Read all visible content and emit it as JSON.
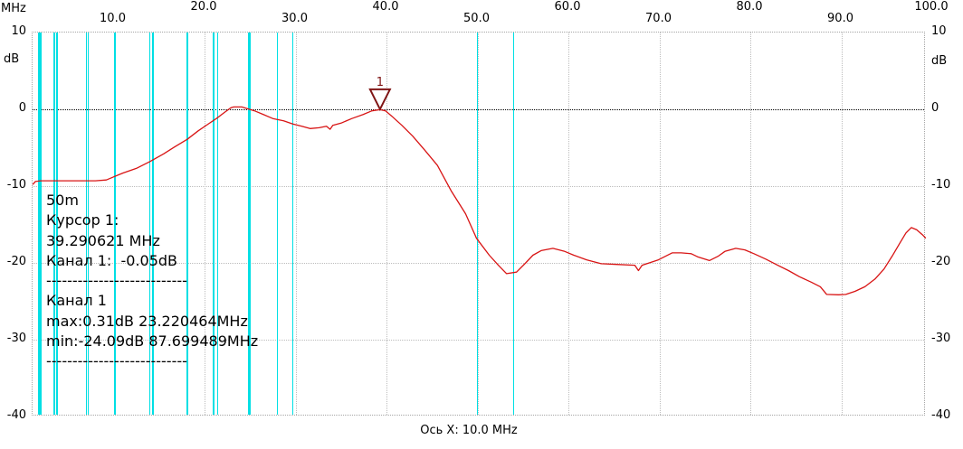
{
  "axes": {
    "x_unit": "MHz",
    "y_unit": "dB",
    "x_caption": "Ось X: 10.0 MHz",
    "x_ticks": [
      {
        "f": 10,
        "label": "10.0",
        "row": 2
      },
      {
        "f": 20,
        "label": "20.0",
        "row": 1
      },
      {
        "f": 30,
        "label": "30.0",
        "row": 2
      },
      {
        "f": 40,
        "label": "40.0",
        "row": 1
      },
      {
        "f": 50,
        "label": "50.0",
        "row": 2
      },
      {
        "f": 60,
        "label": "60.0",
        "row": 1
      },
      {
        "f": 70,
        "label": "70.0",
        "row": 2
      },
      {
        "f": 80,
        "label": "80.0",
        "row": 1
      },
      {
        "f": 90,
        "label": "90.0",
        "row": 2
      },
      {
        "f": 100,
        "label": "100.0",
        "row": 1
      }
    ],
    "y_ticks": [
      {
        "db": 10,
        "label": "10"
      },
      {
        "db": 0,
        "label": "0"
      },
      {
        "db": -10,
        "label": "-10"
      },
      {
        "db": -20,
        "label": "-20"
      },
      {
        "db": -30,
        "label": "-30"
      },
      {
        "db": -40,
        "label": "-40"
      }
    ]
  },
  "overlay": {
    "lines": [
      "50m",
      "Курсор 1:",
      "39.290621 MHz",
      "Канал 1:  -0.05dB",
      "---------------------------",
      "Канал 1",
      "max:0.31dB 23.220464MHz",
      "min:-24.09dB 87.699489MHz",
      "---------------------------"
    ]
  },
  "marker": {
    "label": "1",
    "f": 39.290621,
    "db": -0.05
  },
  "colors": {
    "trace": "#d81414",
    "marker": "#7f1414",
    "band_line": "#00dfe4",
    "grid": "#bdbdbd",
    "zero_line": "#000000",
    "border": "#a6a6a6",
    "text": "#000000",
    "background": "#ffffff"
  },
  "chart_data": {
    "type": "line",
    "title": "",
    "xlabel": "Ось X: 10.0 MHz",
    "x_unit": "MHz",
    "ylabel": "dB",
    "xlim": [
      1.1,
      99.3
    ],
    "ylim": [
      -40,
      10
    ],
    "grid": true,
    "x_gridlines_mhz": [
      10,
      20,
      30,
      40,
      50,
      60,
      70,
      80,
      90
    ],
    "y_gridlines_db": [
      0,
      -10,
      -20,
      -30
    ],
    "band_lines_mhz": [
      1.8,
      2.0,
      3.5,
      3.8,
      7.0,
      7.2,
      10.1,
      10.15,
      14.0,
      14.35,
      18.068,
      18.168,
      21.0,
      21.45,
      24.89,
      24.99,
      28.0,
      29.7,
      50.0,
      54.0
    ],
    "cursor": {
      "label": "1",
      "f_mhz": 39.290621,
      "level_db": -0.05
    },
    "stats": {
      "channel": "Канал 1",
      "max_db": 0.31,
      "max_f_mhz": 23.220464,
      "min_db": -24.09,
      "min_f_mhz": 87.699489
    },
    "series": [
      {
        "name": "Канал 1",
        "color": "#d81414",
        "points": [
          [
            1.1,
            -9.8
          ],
          [
            1.4,
            -9.4
          ],
          [
            2.0,
            -9.3
          ],
          [
            3.5,
            -9.3
          ],
          [
            5.0,
            -9.3
          ],
          [
            6.5,
            -9.3
          ],
          [
            8.0,
            -9.3
          ],
          [
            9.2,
            -9.2
          ],
          [
            10.0,
            -8.8
          ],
          [
            11.0,
            -8.3
          ],
          [
            12.5,
            -7.7
          ],
          [
            14.0,
            -6.8
          ],
          [
            15.5,
            -5.8
          ],
          [
            16.7,
            -4.9
          ],
          [
            18.1,
            -3.9
          ],
          [
            19.3,
            -2.8
          ],
          [
            20.3,
            -2.0
          ],
          [
            21.3,
            -1.2
          ],
          [
            22.2,
            -0.4
          ],
          [
            22.9,
            0.2
          ],
          [
            23.2,
            0.31
          ],
          [
            24.1,
            0.3
          ],
          [
            24.7,
            0.1
          ],
          [
            25.5,
            -0.2
          ],
          [
            26.5,
            -0.7
          ],
          [
            27.5,
            -1.2
          ],
          [
            28.7,
            -1.5
          ],
          [
            29.7,
            -1.9
          ],
          [
            30.7,
            -2.2
          ],
          [
            31.6,
            -2.5
          ],
          [
            32.6,
            -2.4
          ],
          [
            33.4,
            -2.2
          ],
          [
            33.8,
            -2.6
          ],
          [
            34.1,
            -2.1
          ],
          [
            35.0,
            -1.8
          ],
          [
            36.2,
            -1.2
          ],
          [
            37.4,
            -0.7
          ],
          [
            38.4,
            -0.2
          ],
          [
            39.29,
            -0.05
          ],
          [
            39.9,
            -0.2
          ],
          [
            40.6,
            -0.9
          ],
          [
            41.7,
            -2.1
          ],
          [
            42.9,
            -3.5
          ],
          [
            44.2,
            -5.3
          ],
          [
            45.6,
            -7.3
          ],
          [
            47.1,
            -10.6
          ],
          [
            48.7,
            -13.6
          ],
          [
            49.9,
            -16.8
          ],
          [
            51.3,
            -19.0
          ],
          [
            52.3,
            -20.3
          ],
          [
            53.2,
            -21.4
          ],
          [
            54.3,
            -21.2
          ],
          [
            55.3,
            -20.0
          ],
          [
            56.1,
            -19.0
          ],
          [
            57.0,
            -18.4
          ],
          [
            58.3,
            -18.1
          ],
          [
            59.6,
            -18.5
          ],
          [
            60.6,
            -19.0
          ],
          [
            62.0,
            -19.6
          ],
          [
            63.6,
            -20.1
          ],
          [
            65.3,
            -20.2
          ],
          [
            67.3,
            -20.3
          ],
          [
            67.7,
            -21.0
          ],
          [
            68.1,
            -20.3
          ],
          [
            69.9,
            -19.6
          ],
          [
            71.4,
            -18.7
          ],
          [
            72.4,
            -18.7
          ],
          [
            73.5,
            -18.8
          ],
          [
            74.2,
            -19.2
          ],
          [
            75.5,
            -19.7
          ],
          [
            76.5,
            -19.1
          ],
          [
            77.2,
            -18.5
          ],
          [
            78.4,
            -18.1
          ],
          [
            79.4,
            -18.3
          ],
          [
            80.4,
            -18.8
          ],
          [
            81.7,
            -19.5
          ],
          [
            83.0,
            -20.3
          ],
          [
            84.2,
            -21.0
          ],
          [
            85.4,
            -21.8
          ],
          [
            86.7,
            -22.5
          ],
          [
            87.7,
            -23.1
          ],
          [
            88.4,
            -24.1
          ],
          [
            89.7,
            -24.15
          ],
          [
            90.5,
            -24.1
          ],
          [
            91.5,
            -23.7
          ],
          [
            92.6,
            -23.1
          ],
          [
            93.7,
            -22.1
          ],
          [
            94.7,
            -20.8
          ],
          [
            95.6,
            -19.1
          ],
          [
            96.4,
            -17.5
          ],
          [
            97.1,
            -16.1
          ],
          [
            97.7,
            -15.4
          ],
          [
            98.3,
            -15.7
          ],
          [
            98.9,
            -16.3
          ],
          [
            99.3,
            -16.8
          ]
        ]
      }
    ]
  }
}
